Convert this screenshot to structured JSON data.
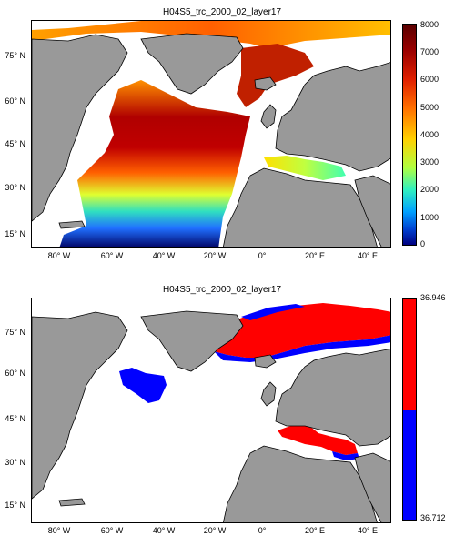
{
  "panels": [
    {
      "title": "H04S5_trc_2000_02_layer17",
      "lat_labels": [
        "75° N",
        "60° N",
        "45° N",
        "30° N",
        "15° N"
      ],
      "lon_labels": [
        "80° W",
        "60° W",
        "40° W",
        "20° W",
        "0°",
        "20° E",
        "40° E"
      ],
      "colorbar": {
        "type": "continuous",
        "ticks": [
          "8000",
          "7000",
          "6000",
          "5000",
          "4000",
          "3000",
          "2000",
          "1000",
          "0"
        ],
        "colors": [
          "#5a0000",
          "#9b0000",
          "#e02000",
          "#ff7000",
          "#ffd000",
          "#b0ff40",
          "#30f0c0",
          "#00a0ff",
          "#0040d0",
          "#000080"
        ]
      }
    },
    {
      "title": "H04S5_trc_2000_02_layer17",
      "lat_labels": [
        "75° N",
        "60° N",
        "45° N",
        "30° N",
        "15° N"
      ],
      "lon_labels": [
        "80° W",
        "60° W",
        "40° W",
        "20° W",
        "0°",
        "20° E",
        "40° E"
      ],
      "colorbar": {
        "type": "binary",
        "ticks": [
          "36.946",
          "36.712"
        ],
        "colors": [
          "#ff0000",
          "#0000ff"
        ]
      }
    }
  ],
  "colors": {
    "land": "#999999",
    "ocean": "#ffffff",
    "coast": "#000000"
  }
}
